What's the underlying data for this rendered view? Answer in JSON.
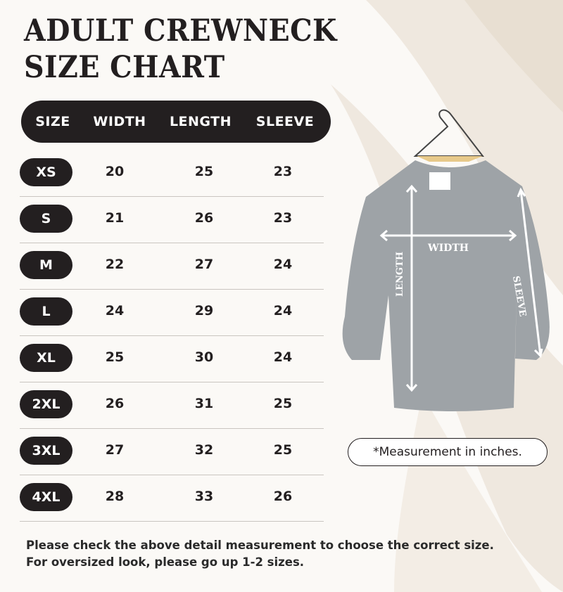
{
  "title": {
    "line1": "ADULT CREWNECK",
    "line2": "SIZE CHART"
  },
  "table": {
    "headers": [
      "SIZE",
      "WIDTH",
      "LENGTH",
      "SLEEVE"
    ],
    "rows": [
      {
        "size": "XS",
        "width": "20",
        "length": "25",
        "sleeve": "23"
      },
      {
        "size": "S",
        "width": "21",
        "length": "26",
        "sleeve": "23"
      },
      {
        "size": "M",
        "width": "22",
        "length": "27",
        "sleeve": "24"
      },
      {
        "size": "L",
        "width": "24",
        "length": "29",
        "sleeve": "24"
      },
      {
        "size": "XL",
        "width": "25",
        "length": "30",
        "sleeve": "24"
      },
      {
        "size": "2XL",
        "width": "26",
        "length": "31",
        "sleeve": "25"
      },
      {
        "size": "3XL",
        "width": "27",
        "length": "32",
        "sleeve": "25"
      },
      {
        "size": "4XL",
        "width": "28",
        "length": "33",
        "sleeve": "26"
      }
    ]
  },
  "diagram": {
    "width_label": "WIDTH",
    "length_label": "LENGTH",
    "sleeve_label": "SLEEVE",
    "garment_color": "#9ea3a7"
  },
  "note": "*Measurement in inches.",
  "footer": {
    "line1": "Please check the above detail measurement to choose the correct size.",
    "line2": "For oversized look, please go up 1-2 sizes."
  }
}
